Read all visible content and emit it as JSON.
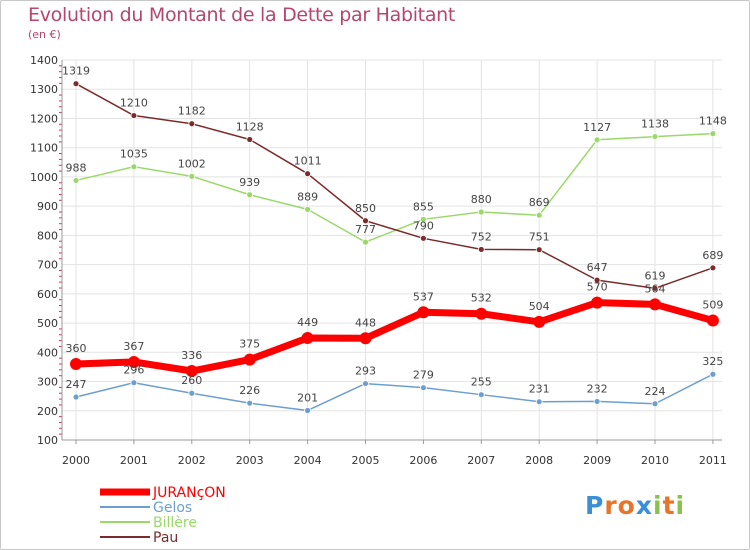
{
  "header": {
    "title": "Evolution du Montant de la Dette par Habitant",
    "subtitle": "(en €)"
  },
  "brand": {
    "letters": [
      "P",
      "r",
      "o",
      "x",
      "i",
      "t",
      "i"
    ],
    "colors": [
      "#3a8fd6",
      "#e8742a",
      "#e8742a",
      "#3a8fd6",
      "#8bc34a",
      "#e8742a",
      "#8bc34a"
    ]
  },
  "chart_data": {
    "type": "line",
    "x": [
      "2000",
      "2001",
      "2002",
      "2003",
      "2004",
      "2005",
      "2006",
      "2007",
      "2008",
      "2009",
      "2010",
      "2011"
    ],
    "ylim": [
      100,
      1400
    ],
    "yticks": [
      100,
      200,
      300,
      400,
      500,
      600,
      700,
      800,
      900,
      1000,
      1100,
      1200,
      1300,
      1400
    ],
    "grid": true,
    "legend_position": "bottom-left",
    "series": [
      {
        "name": "JURANçON",
        "color": "#ff0000",
        "width": 7,
        "point_radius": 6,
        "values": [
          360,
          367,
          336,
          375,
          449,
          448,
          537,
          532,
          504,
          570,
          564,
          509
        ],
        "labels": [
          "360",
          "367",
          "336",
          "375",
          "449",
          "448",
          "537",
          "532",
          "504",
          "570",
          "564",
          "509"
        ]
      },
      {
        "name": "Gelos",
        "color": "#6c9fcf",
        "width": 1.5,
        "point_radius": 3,
        "values": [
          247,
          296,
          260,
          226,
          201,
          293,
          279,
          255,
          231,
          232,
          224,
          325
        ],
        "labels": [
          "247",
          "296",
          "260",
          "226",
          "201",
          "293",
          "279",
          "255",
          "231",
          "232",
          "224",
          "325"
        ]
      },
      {
        "name": "Billère",
        "color": "#9ad86a",
        "width": 1.5,
        "point_radius": 3,
        "values": [
          988,
          1035,
          1002,
          939,
          889,
          777,
          855,
          880,
          869,
          1127,
          1138,
          1148
        ],
        "labels": [
          "988",
          "1035",
          "1002",
          "939",
          "889",
          "777",
          "855",
          "880",
          "869",
          "1127",
          "1138",
          "1148"
        ]
      },
      {
        "name": "Pau",
        "color": "#7a2b2b",
        "width": 1.5,
        "point_radius": 3,
        "values": [
          1319,
          1210,
          1182,
          1128,
          1011,
          850,
          790,
          752,
          751,
          647,
          619,
          689
        ],
        "labels": [
          "1319",
          "1210",
          "1182",
          "1128",
          "1011",
          "850",
          "790",
          "752",
          "751",
          "647",
          "619",
          "689"
        ]
      }
    ]
  }
}
